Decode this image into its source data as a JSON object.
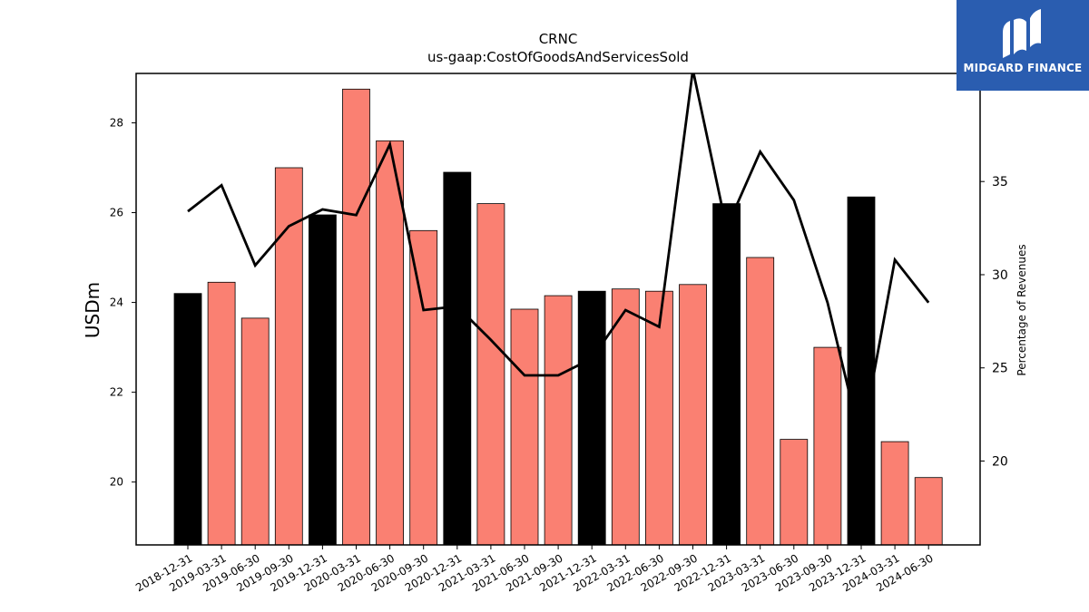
{
  "logo": {
    "text": "MIDGARD FINANCE"
  },
  "chart_data": {
    "type": "bar",
    "title": "CRNC",
    "subtitle": "us-gaap:CostOfGoodsAndServicesSold",
    "ylabel": "USDm",
    "y2label": "Percentage of Revenues",
    "ylim": [
      18.6,
      29.1
    ],
    "y2lim": [
      15.5,
      40.8
    ],
    "yticks": [
      "20",
      "22",
      "24",
      "26",
      "28"
    ],
    "y2ticks": [
      "20",
      "25",
      "30",
      "35"
    ],
    "categories": [
      "2018-12-31",
      "2019-03-31",
      "2019-06-30",
      "2019-09-30",
      "2019-12-31",
      "2020-03-31",
      "2020-06-30",
      "2020-09-30",
      "2020-12-31",
      "2021-03-31",
      "2021-06-30",
      "2021-09-30",
      "2021-12-31",
      "2022-03-31",
      "2022-06-30",
      "2022-09-30",
      "2022-12-31",
      "2023-03-31",
      "2023-06-30",
      "2023-09-30",
      "2023-12-31",
      "2024-03-31",
      "2024-06-30"
    ],
    "values": [
      24.2,
      24.45,
      23.65,
      27.0,
      25.95,
      28.75,
      27.6,
      25.6,
      26.9,
      26.2,
      23.85,
      24.15,
      24.25,
      24.3,
      24.25,
      24.4,
      26.2,
      25.0,
      20.95,
      23.0,
      26.35,
      20.9,
      20.1
    ],
    "fiscal_year_end": [
      true,
      false,
      false,
      false,
      true,
      false,
      false,
      false,
      true,
      false,
      false,
      false,
      true,
      false,
      false,
      false,
      true,
      false,
      false,
      false,
      true,
      false,
      false
    ],
    "series": [
      {
        "type": "bar",
        "values_ref": "values",
        "colors": {
          "quarter": "#fa8072",
          "year_end": "#000000"
        }
      },
      {
        "type": "line",
        "axis": "right",
        "values": [
          33.4,
          34.8,
          30.5,
          32.6,
          33.5,
          33.2,
          37.0,
          28.1,
          28.3,
          26.5,
          24.6,
          24.6,
          25.5,
          28.1,
          27.2,
          41.0,
          32.5,
          36.6,
          34.0,
          28.5,
          21.0,
          30.8,
          28.5
        ],
        "color": "#000000"
      }
    ],
    "grid": false,
    "legend": "none"
  }
}
